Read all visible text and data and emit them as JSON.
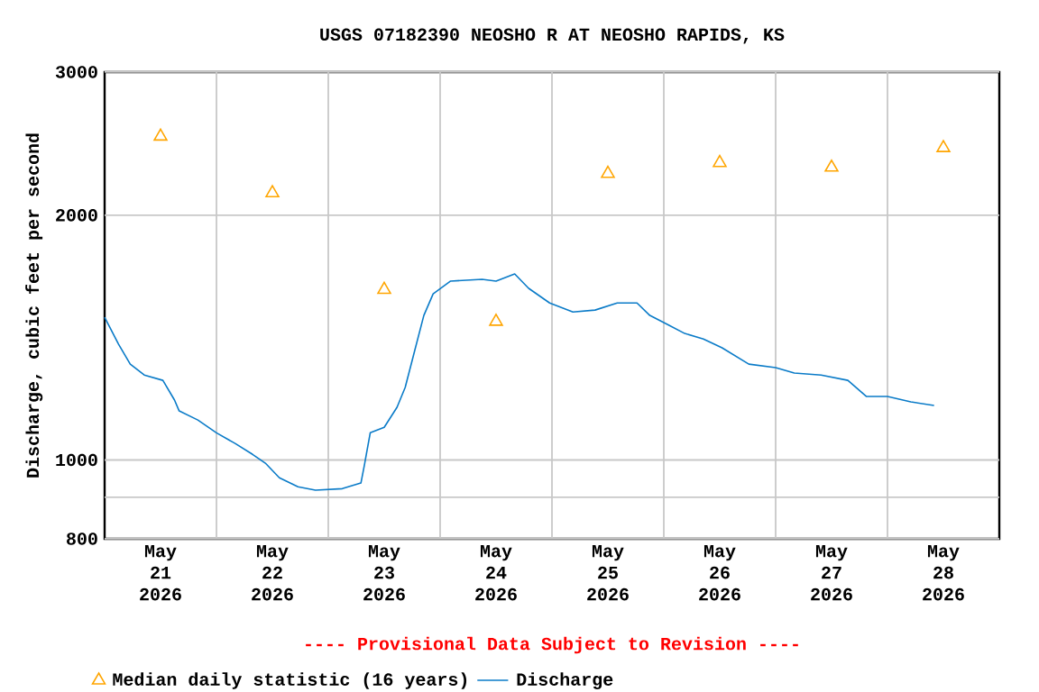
{
  "chart_data": {
    "type": "line",
    "title": "USGS 07182390 NEOSHO R AT NEOSHO RAPIDS, KS",
    "ylabel": "Discharge, cubic feet per second",
    "annotations": [
      "---- Provisional Data Subject to Revision ----"
    ],
    "log": "y",
    "grid": true,
    "legend": "bottom",
    "xlim": [
      "2026-05-21T00:00",
      "2026-05-29T00:00"
    ],
    "xticks": [
      {
        "value": "2026-05-21T12:00",
        "label": "May 21 2026"
      },
      {
        "value": "2026-05-22T00:00",
        "label": null
      },
      {
        "value": "2026-05-22T12:00",
        "label": "May 22 2026"
      },
      {
        "value": "2026-05-23T00:00",
        "label": null
      },
      {
        "value": "2026-05-23T12:00",
        "label": "May 23 2026"
      },
      {
        "value": "2026-05-24T00:00",
        "label": null
      },
      {
        "value": "2026-05-24T12:00",
        "label": "May 24 2026"
      },
      {
        "value": "2026-05-25T00:00",
        "label": null
      },
      {
        "value": "2026-05-25T12:00",
        "label": "May 25 2026"
      },
      {
        "value": "2026-05-26T00:00",
        "label": null
      },
      {
        "value": "2026-05-26T12:00",
        "label": "May 26 2026"
      },
      {
        "value": "2026-05-27T00:00",
        "label": null
      },
      {
        "value": "2026-05-27T12:00",
        "label": "May 27 2026"
      },
      {
        "value": "2026-05-28T00:00",
        "label": null
      },
      {
        "value": "2026-05-28T12:00",
        "label": "May 28 2026"
      }
    ],
    "ylim": [
      800,
      3000
    ],
    "yticks": [
      800,
      {
        "value": 900,
        "label": null
      },
      1000,
      2000,
      3000
    ],
    "series": [
      {
        "name": "Median daily statistic (16 years)",
        "type": "scatter",
        "marker": "triangle",
        "color": "#ffa500",
        "x": [
          "2026-05-21T12:00",
          "2026-05-22T12:00",
          "2026-05-23T12:00",
          "2026-05-24T12:00",
          "2026-05-25T12:00",
          "2026-05-26T12:00",
          "2026-05-27T12:00",
          "2026-05-28T12:00"
        ],
        "values": [
          2500,
          2130,
          1620,
          1480,
          2250,
          2320,
          2290,
          2420
        ]
      },
      {
        "name": "Discharge",
        "marker": "none",
        "color": "#0a7bc8",
        "x": [
          "2026-05-21T00:00",
          "2026-05-21T03:00",
          "2026-05-21T05:30",
          "2026-05-21T08:30",
          "2026-05-21T12:30",
          "2026-05-21T15:00",
          "2026-05-21T16:00",
          "2026-05-21T20:00",
          "2026-05-22T00:00",
          "2026-05-22T04:00",
          "2026-05-22T07:45",
          "2026-05-22T10:30",
          "2026-05-22T13:30",
          "2026-05-22T17:30",
          "2026-05-22T21:15",
          "2026-05-23T03:00",
          "2026-05-23T07:00",
          "2026-05-23T07:45",
          "2026-05-23T09:00",
          "2026-05-23T12:00",
          "2026-05-23T14:45",
          "2026-05-23T16:30",
          "2026-05-23T18:30",
          "2026-05-23T20:30",
          "2026-05-23T22:30",
          "2026-05-24T02:15",
          "2026-05-24T09:00",
          "2026-05-24T12:00",
          "2026-05-24T16:00",
          "2026-05-24T19:00",
          "2026-05-24T23:30",
          "2026-05-25T04:30",
          "2026-05-25T09:15",
          "2026-05-25T14:00",
          "2026-05-25T18:15",
          "2026-05-25T21:00",
          "2026-05-26T00:45",
          "2026-05-26T04:30",
          "2026-05-26T08:30",
          "2026-05-26T12:30",
          "2026-05-26T18:15",
          "2026-05-27T00:00",
          "2026-05-27T04:00",
          "2026-05-27T09:45",
          "2026-05-27T15:30",
          "2026-05-27T19:30",
          "2026-05-28T00:00",
          "2026-05-28T05:00",
          "2026-05-28T10:00"
        ],
        "values": [
          1498,
          1388,
          1312,
          1272,
          1253,
          1185,
          1149,
          1120,
          1080,
          1048,
          1016,
          991,
          951,
          927,
          918,
          922,
          937,
          986,
          1080,
          1097,
          1161,
          1228,
          1360,
          1506,
          1601,
          1660,
          1668,
          1660,
          1694,
          1626,
          1560,
          1521,
          1529,
          1560,
          1560,
          1506,
          1468,
          1431,
          1409,
          1374,
          1312,
          1299,
          1279,
          1272,
          1253,
          1197,
          1197,
          1179,
          1167
        ]
      }
    ]
  }
}
